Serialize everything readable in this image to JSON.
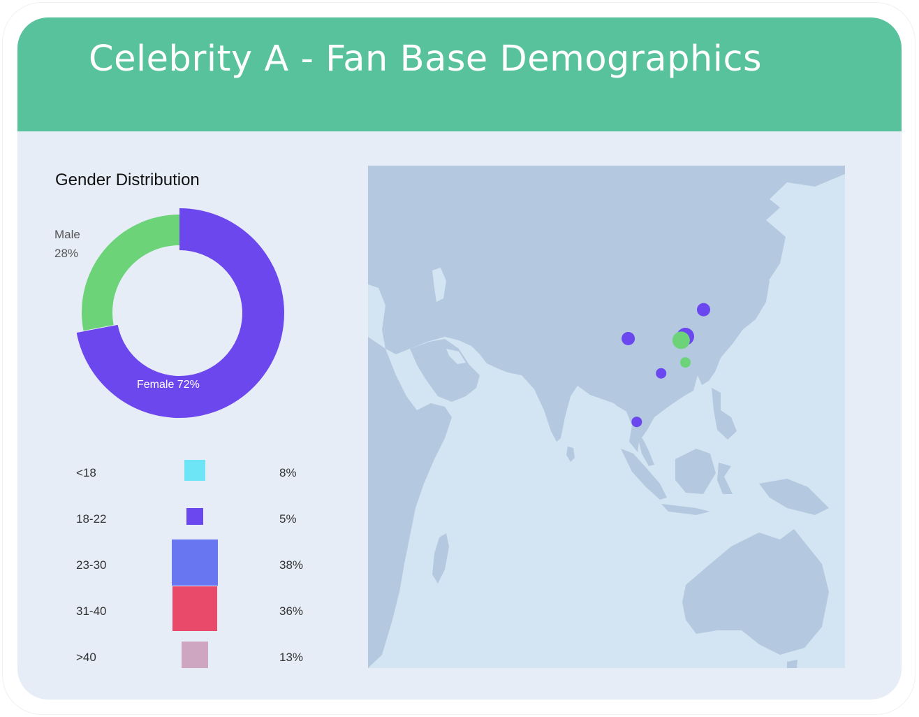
{
  "title": "Celebrity A - Fan Base Demographics",
  "gender": {
    "title": "Gender Distribution",
    "male_label": "Male",
    "male_value": "28%",
    "female_text": "Female 72%"
  },
  "chart_data": [
    {
      "type": "pie",
      "title": "Gender Distribution",
      "donut": true,
      "slices": [
        {
          "label": "Female",
          "value": 72,
          "color": "#6c47ee"
        },
        {
          "label": "Male",
          "value": 28,
          "color": "#6cd379"
        }
      ]
    },
    {
      "type": "bar",
      "encoding": "square-area",
      "categories": [
        "<18",
        "18-22",
        "23-30",
        "31-40",
        ">40"
      ],
      "values": [
        8,
        5,
        38,
        36,
        13
      ],
      "value_labels": [
        "8%",
        "5%",
        "38%",
        "36%",
        "13%"
      ],
      "colors": [
        "#6ee5f7",
        "#6a47ee",
        "#6876f1",
        "#ea4a6a",
        "#cfa6c2"
      ]
    },
    {
      "type": "scatter",
      "encoding": "geo-bubbles",
      "points": [
        {
          "lon": 121.5,
          "lat": 31.2,
          "size": "large",
          "color": "#6a47ee"
        },
        {
          "lon": 120.2,
          "lat": 30.3,
          "size": "large",
          "color": "#6cd379"
        },
        {
          "lon": 104.1,
          "lat": 30.7,
          "size": "medium",
          "color": "#6a47ee"
        },
        {
          "lon": 127.0,
          "lat": 37.6,
          "size": "medium",
          "color": "#6a47ee"
        },
        {
          "lon": 121.5,
          "lat": 25.0,
          "size": "small",
          "color": "#6cd379"
        },
        {
          "lon": 114.1,
          "lat": 22.4,
          "size": "small",
          "color": "#6a47ee"
        },
        {
          "lon": 106.7,
          "lat": 10.8,
          "size": "small",
          "color": "#6a47ee"
        }
      ]
    }
  ],
  "age_groups": [
    {
      "label": "<18",
      "value": "8%"
    },
    {
      "label": "18-22",
      "value": "5%"
    },
    {
      "label": "23-30",
      "value": "38%"
    },
    {
      "label": "31-40",
      "value": "36%"
    },
    {
      "label": ">40",
      "value": "13%"
    }
  ],
  "colors": {
    "header": "#58c29d",
    "card_background": "#e6edf7",
    "ocean": "#d3e5f2",
    "land": "#b4c9e0"
  }
}
